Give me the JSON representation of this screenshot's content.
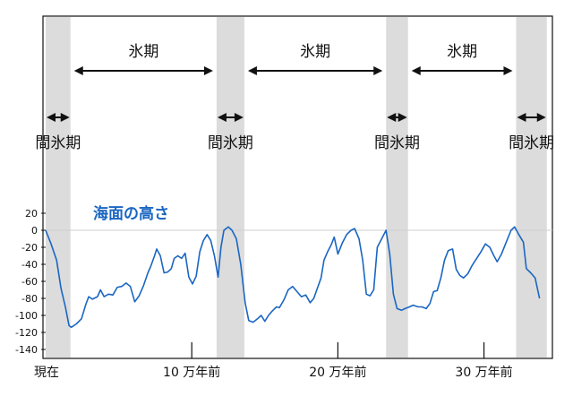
{
  "chart_data": {
    "type": "line",
    "xlabel": "",
    "ylabel": "",
    "x_unit": "万年前",
    "xlim": [
      0,
      34.5
    ],
    "ylim": [
      -145,
      28
    ],
    "yticks": [
      20,
      0,
      -20,
      -40,
      -60,
      -80,
      -100,
      -120,
      -140
    ],
    "xticks": [
      {
        "value": 0,
        "label": "現在"
      },
      {
        "value": 10,
        "label": "10 万年前"
      },
      {
        "value": 20,
        "label": "20 万年前"
      },
      {
        "value": 30,
        "label": "30 万年前"
      }
    ],
    "interglacial_label": "間氷期",
    "glacial_label": "氷期",
    "interglacials": [
      [
        0,
        1.7
      ],
      [
        11.7,
        13.6
      ],
      [
        23.3,
        24.8
      ],
      [
        32.2,
        34.3
      ]
    ],
    "glacials": [
      [
        1.7,
        11.7
      ],
      [
        13.6,
        23.3
      ],
      [
        24.8,
        32.2
      ]
    ],
    "series": [
      {
        "name": "海面の高さ",
        "color": "#1a66c2",
        "points": [
          [
            0.0,
            0
          ],
          [
            0.35,
            -15
          ],
          [
            0.75,
            -35
          ],
          [
            1.05,
            -68
          ],
          [
            1.35,
            -90
          ],
          [
            1.6,
            -112
          ],
          [
            1.75,
            -114
          ],
          [
            2.1,
            -110
          ],
          [
            2.45,
            -104
          ],
          [
            2.75,
            -87
          ],
          [
            2.95,
            -78
          ],
          [
            3.2,
            -81
          ],
          [
            3.55,
            -78
          ],
          [
            3.75,
            -70
          ],
          [
            4.0,
            -78
          ],
          [
            4.3,
            -75
          ],
          [
            4.6,
            -76
          ],
          [
            4.9,
            -67
          ],
          [
            5.2,
            -66
          ],
          [
            5.5,
            -62
          ],
          [
            5.8,
            -66
          ],
          [
            6.1,
            -84
          ],
          [
            6.4,
            -77
          ],
          [
            6.7,
            -65
          ],
          [
            7.0,
            -50
          ],
          [
            7.2,
            -42
          ],
          [
            7.45,
            -30
          ],
          [
            7.6,
            -22
          ],
          [
            7.85,
            -30
          ],
          [
            8.1,
            -50
          ],
          [
            8.35,
            -49
          ],
          [
            8.6,
            -45
          ],
          [
            8.8,
            -33
          ],
          [
            9.05,
            -30
          ],
          [
            9.3,
            -33
          ],
          [
            9.55,
            -27
          ],
          [
            9.8,
            -55
          ],
          [
            10.05,
            -63
          ],
          [
            10.3,
            -54
          ],
          [
            10.55,
            -25
          ],
          [
            10.8,
            -12
          ],
          [
            11.05,
            -5
          ],
          [
            11.3,
            -12
          ],
          [
            11.55,
            -30
          ],
          [
            11.8,
            -55
          ],
          [
            12.0,
            -20
          ],
          [
            12.2,
            0
          ],
          [
            12.5,
            4
          ],
          [
            12.75,
            0
          ],
          [
            13.05,
            -10
          ],
          [
            13.35,
            -40
          ],
          [
            13.65,
            -85
          ],
          [
            13.9,
            -106
          ],
          [
            14.2,
            -108
          ],
          [
            14.5,
            -104
          ],
          [
            14.75,
            -100
          ],
          [
            15.0,
            -107
          ],
          [
            15.25,
            -100
          ],
          [
            15.5,
            -95
          ],
          [
            15.8,
            -90
          ],
          [
            16.0,
            -91
          ],
          [
            16.3,
            -82
          ],
          [
            16.6,
            -70
          ],
          [
            16.9,
            -66
          ],
          [
            17.2,
            -72
          ],
          [
            17.5,
            -78
          ],
          [
            17.8,
            -76
          ],
          [
            18.1,
            -85
          ],
          [
            18.35,
            -80
          ],
          [
            18.6,
            -68
          ],
          [
            18.85,
            -56
          ],
          [
            19.05,
            -35
          ],
          [
            19.3,
            -25
          ],
          [
            19.55,
            -17
          ],
          [
            19.75,
            -8
          ],
          [
            20.0,
            -28
          ],
          [
            20.3,
            -15
          ],
          [
            20.6,
            -5
          ],
          [
            20.9,
            0
          ],
          [
            21.15,
            2
          ],
          [
            21.45,
            -10
          ],
          [
            21.7,
            -35
          ],
          [
            21.95,
            -75
          ],
          [
            22.2,
            -77
          ],
          [
            22.45,
            -70
          ],
          [
            22.7,
            -20
          ],
          [
            23.0,
            -10
          ],
          [
            23.3,
            0
          ],
          [
            23.55,
            -28
          ],
          [
            23.8,
            -75
          ],
          [
            24.05,
            -92
          ],
          [
            24.35,
            -94
          ],
          [
            24.6,
            -92
          ],
          [
            24.9,
            -90
          ],
          [
            25.15,
            -88
          ],
          [
            25.5,
            -90
          ],
          [
            25.75,
            -90
          ],
          [
            26.05,
            -92
          ],
          [
            26.3,
            -86
          ],
          [
            26.55,
            -72
          ],
          [
            26.8,
            -71
          ],
          [
            27.05,
            -56
          ],
          [
            27.3,
            -35
          ],
          [
            27.55,
            -24
          ],
          [
            27.85,
            -22
          ],
          [
            28.1,
            -46
          ],
          [
            28.35,
            -53
          ],
          [
            28.6,
            -56
          ],
          [
            28.9,
            -51
          ],
          [
            29.2,
            -41
          ],
          [
            29.5,
            -33
          ],
          [
            29.8,
            -25
          ],
          [
            30.1,
            -16
          ],
          [
            30.4,
            -20
          ],
          [
            30.65,
            -29
          ],
          [
            30.9,
            -37
          ],
          [
            31.2,
            -28
          ],
          [
            31.5,
            -15
          ],
          [
            31.85,
            0
          ],
          [
            32.1,
            4
          ],
          [
            32.35,
            -4
          ],
          [
            32.7,
            -14
          ],
          [
            32.9,
            -45
          ],
          [
            33.2,
            -50
          ],
          [
            33.5,
            -56
          ],
          [
            33.8,
            -80
          ]
        ]
      }
    ]
  }
}
